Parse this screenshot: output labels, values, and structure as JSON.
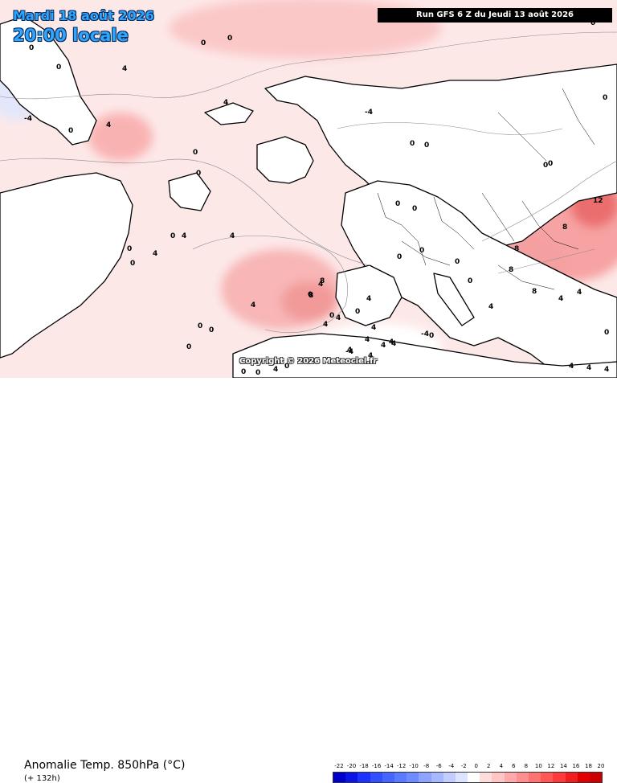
{
  "header": {
    "date": "Mardi 18 août 2026",
    "time": "20:00 locale",
    "run": "Run GFS 6 Z du Jeudi 13 août 2026"
  },
  "footer": {
    "variable": "Anomalie Temp. 850hPa (°C)",
    "lead": "(+ 132h)",
    "copyright": "Copyright © 2026 Meteociel.fr"
  },
  "colorbar": {
    "labels": [
      "-22",
      "-20",
      "-18",
      "-16",
      "-14",
      "-12",
      "-10",
      "-8",
      "-6",
      "-4",
      "-2",
      "0",
      "2",
      "4",
      "6",
      "8",
      "10",
      "12",
      "14",
      "16",
      "18",
      "20"
    ],
    "colors": [
      "#0000cc",
      "#0a14e6",
      "#1e32ff",
      "#3250ff",
      "#4664ff",
      "#5a7aff",
      "#6e8cff",
      "#8ca4ff",
      "#a6b8ff",
      "#c2ccff",
      "#dde4ff",
      "#ffffff",
      "#ffdcdc",
      "#ffc4c4",
      "#ffaaaa",
      "#ff8e8e",
      "#ff7272",
      "#ff5656",
      "#ff3a3a",
      "#f01e1e",
      "#e00000",
      "#cc0000"
    ]
  },
  "map": {
    "sea_color": "#fde8e8",
    "land_color": "#ffffff",
    "contour_labels": [
      "0",
      "0",
      "4",
      "0",
      "0",
      "4",
      "4",
      "4",
      "0",
      "-4",
      "0",
      "4",
      "0",
      "0",
      "0",
      "4",
      "0",
      "4",
      "0",
      "0",
      "0",
      "4",
      "0",
      "0",
      "0",
      "4",
      "4",
      "0",
      "0",
      "4",
      "0",
      "4",
      "4",
      "4",
      "4",
      "4",
      "4",
      "0",
      "0",
      "8",
      "8",
      "4",
      "4",
      "0",
      "0",
      "0",
      "-4",
      "0",
      "0",
      "-4",
      "0",
      "0",
      "0",
      "4",
      "8",
      "8",
      "8",
      "12",
      "8",
      "4",
      "4",
      "4",
      "4",
      "4",
      "0",
      "0",
      "0",
      "0",
      "-4"
    ]
  }
}
